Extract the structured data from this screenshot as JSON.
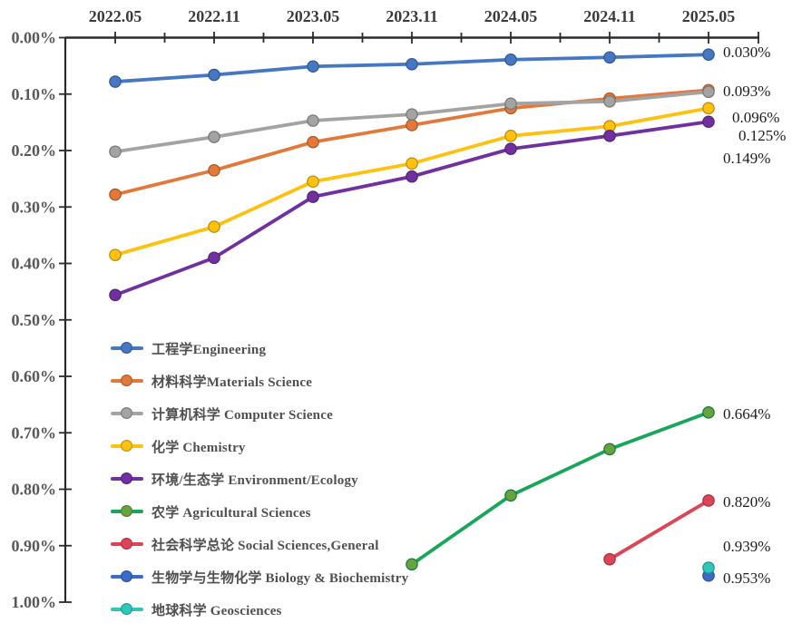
{
  "chart_data": {
    "type": "line",
    "title": "",
    "x_axis": {
      "position": "top",
      "categories": [
        "2022.05",
        "2022.11",
        "2023.05",
        "2023.11",
        "2024.05",
        "2024.11",
        "2025.05"
      ]
    },
    "y_axis": {
      "unit": "%",
      "min": 0.0,
      "max": 1.0,
      "step": 0.1,
      "inverted": true,
      "labels": [
        "0.00%",
        "0.10%",
        "0.20%",
        "0.30%",
        "0.40%",
        "0.50%",
        "0.60%",
        "0.70%",
        "0.80%",
        "0.90%",
        "1.00%"
      ]
    },
    "grid": "off",
    "legend_position": "inside-bottom-left",
    "series": [
      {
        "name": "工程学Engineering",
        "color": "#4577c2",
        "values": [
          0.078,
          0.066,
          0.051,
          0.047,
          0.039,
          0.035,
          0.03
        ],
        "end_label": "0.030%"
      },
      {
        "name": "材料科学Materials Science",
        "color": "#e2793a",
        "values": [
          0.278,
          0.235,
          0.185,
          0.155,
          0.125,
          0.108,
          0.093
        ],
        "end_label": "0.093%"
      },
      {
        "name": "计算机科学 Computer Science",
        "color": "#a3a3a3",
        "values": [
          0.202,
          0.176,
          0.147,
          0.136,
          0.117,
          0.113,
          0.096
        ],
        "end_label": "0.096%"
      },
      {
        "name": "化学 Chemistry",
        "color": "#fec10d",
        "values": [
          0.385,
          0.335,
          0.255,
          0.223,
          0.174,
          0.157,
          0.125
        ],
        "end_label": "0.125%"
      },
      {
        "name": "环境/生态学 Environment/Ecology",
        "color": "#7030a0",
        "values": [
          0.456,
          0.39,
          0.282,
          0.246,
          0.197,
          0.174,
          0.149
        ],
        "end_label": "0.149%"
      },
      {
        "name": "农学 Agricultural Sciences",
        "color": "#18a65b",
        "marker_color": "#68a33e",
        "values": [
          null,
          null,
          null,
          0.933,
          0.811,
          0.729,
          0.664
        ],
        "end_label": "0.664%"
      },
      {
        "name": "社会科学总论 Social Sciences,General",
        "color": "#dd4557",
        "values": [
          null,
          null,
          null,
          null,
          null,
          0.924,
          0.82
        ],
        "end_label": "0.820%"
      },
      {
        "name": "生物学与生物化学 Biology & Biochemistry",
        "color": "#3a6bc8",
        "values": [
          null,
          null,
          null,
          null,
          null,
          null,
          0.953
        ],
        "end_label": "0.953%"
      },
      {
        "name": "地球科学 Geosciences",
        "color": "#2fc7b9",
        "values": [
          null,
          null,
          null,
          null,
          null,
          null,
          0.939
        ],
        "end_label": "0.939%"
      }
    ],
    "colors": {
      "axis": "#2b2b2b",
      "x_tick_label": "#3a3a3a",
      "y_tick_label": "#585858",
      "end_label": "#1c1c1c",
      "legend_text": "#4f4f4f",
      "background": "#ffffff"
    }
  }
}
